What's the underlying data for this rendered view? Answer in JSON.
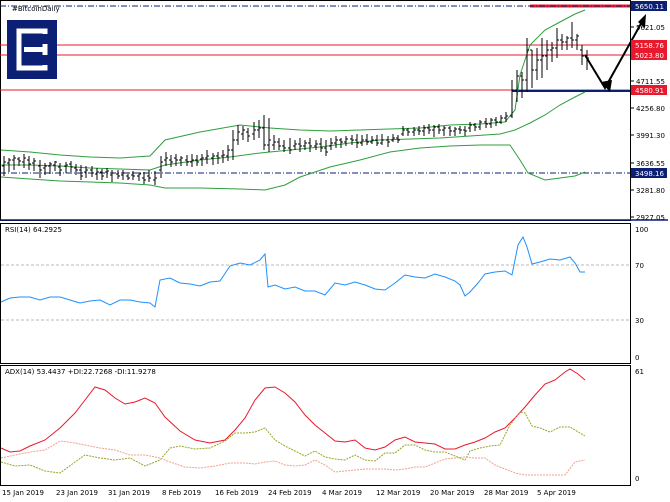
{
  "chart_data": [
    {
      "type": "ohlc",
      "panel": "price",
      "title": "#BitcoinDaily",
      "y_ticks": [
        "5621.05",
        "4711.55",
        "4256.80",
        "3991.30",
        "3636.55",
        "3281.80",
        "2927.05"
      ],
      "price_lines": [
        {
          "value": "5650.11",
          "color": "#e8192c",
          "style": "solid-thick",
          "label_bg": "#0b1f74"
        },
        {
          "value": "5158.76",
          "color": "#e8192c",
          "style": "solid",
          "label_bg": "#e8192c"
        },
        {
          "value": "5023.80",
          "color": "#e8192c",
          "style": "solid",
          "label_bg": "#e8192c"
        },
        {
          "value": "4580.91",
          "color": "#e8192c",
          "style": "solid",
          "label_bg": "#e8192c"
        },
        {
          "value": "3498.16",
          "color": "#0b1f74",
          "style": "dashdot",
          "label_bg": "#0b1f74"
        }
      ],
      "dates": [],
      "ohlc": [],
      "bollinger": {
        "upper": [],
        "middle": [],
        "lower": []
      },
      "projection": "down then up arrow"
    },
    {
      "type": "line",
      "panel": "rsi",
      "title": "RSI(14) 64.2925",
      "y_ticks": [
        "100",
        "70",
        "30",
        "0"
      ],
      "levels": [
        70,
        30
      ],
      "series": [
        {
          "values": []
        }
      ],
      "color": "#1e90ff"
    },
    {
      "type": "line",
      "panel": "adx",
      "title": "ADX(14) 53.4437 +DI:22.7268 -DI:11.9278",
      "y_ticks": [
        "61",
        "0"
      ],
      "series": [
        {
          "values": []
        },
        {
          "values": [],
          "style": "dotted"
        },
        {
          "values": [],
          "style": "dotted"
        }
      ]
    }
  ],
  "x_labels": [
    "15 Jan 2019",
    "23 Jan 2019",
    "31 Jan 2019",
    "8 Feb 2019",
    "16 Feb 2019",
    "24 Feb 2019",
    "4 Mar 2019",
    "12 Mar 2019",
    "20 Mar 2019",
    "28 Mar 2019",
    "5 Apr 2019"
  ],
  "colors": {
    "bars": "#000000",
    "bands": "#2e9e3e",
    "levels_red": "#e8192c",
    "navy": "#0b1f74",
    "rsi": "#1e90ff",
    "adx_main": "#e8192c",
    "di_plus": "#9aa52a",
    "di_minus": "#f0a090"
  },
  "logo": {
    "icon": "exness-logo-icon"
  }
}
